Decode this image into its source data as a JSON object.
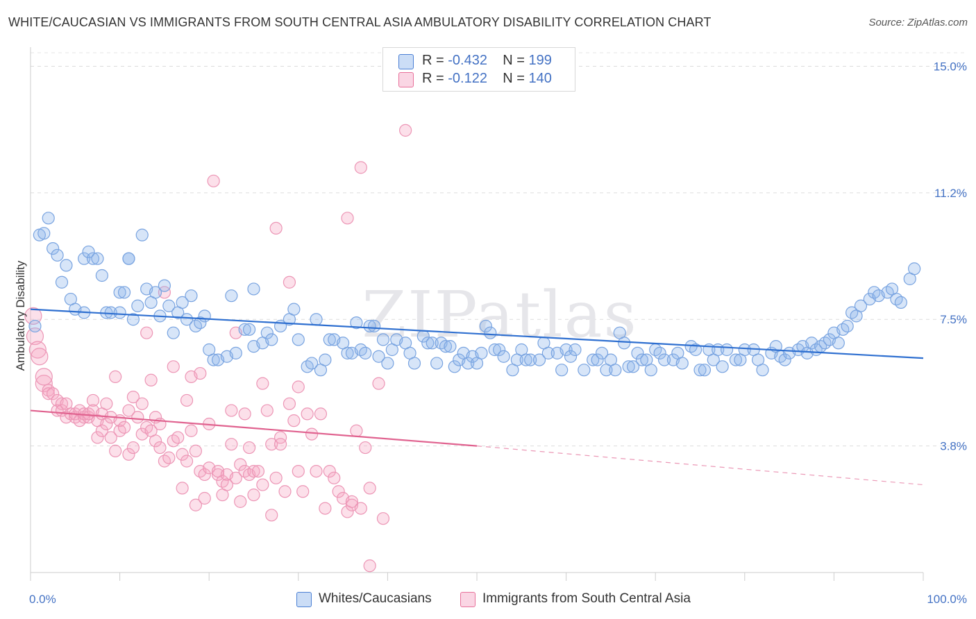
{
  "title": "WHITE/CAUCASIAN VS IMMIGRANTS FROM SOUTH CENTRAL ASIA AMBULATORY DISABILITY CORRELATION CHART",
  "source": "Source: ZipAtlas.com",
  "watermark": "ZIPatlas",
  "colors": {
    "blue": "#4a7fd4",
    "blue_fill": "rgba(140,180,235,0.35)",
    "pink": "#e8709a",
    "pink_fill": "rgba(245,165,195,0.35)",
    "tick_label": "#4472c4"
  },
  "legend_top": [
    {
      "r_label": "R = ",
      "r_value": "-0.432",
      "n_label": "N = ",
      "n_value": "199"
    },
    {
      "r_label": "R = ",
      "r_value": " -0.122",
      "n_label": "N = ",
      "n_value": "140"
    }
  ],
  "chart_data": {
    "type": "scatter",
    "title": "WHITE/CAUCASIAN VS IMMIGRANTS FROM SOUTH CENTRAL ASIA AMBULATORY DISABILITY CORRELATION CHART",
    "ylabel": "Ambulatory Disability",
    "xlabel": "",
    "x_tick_labels": [
      "0.0%",
      "100.0%"
    ],
    "y_tick_labels": [
      "15.0%",
      "11.2%",
      "7.5%",
      "3.8%"
    ],
    "y_ticks": [
      15.0,
      11.25,
      7.5,
      3.75
    ],
    "xlim": [
      0,
      100
    ],
    "ylim": [
      0,
      15.4
    ],
    "grid": "horizontal dashed",
    "legend": "bottom-center",
    "series": [
      {
        "name": "Whites/Caucasians",
        "color": "#4a7fd4",
        "R": -0.432,
        "N": 199,
        "trend": {
          "x": [
            0,
            100
          ],
          "y": [
            7.8,
            6.35
          ]
        },
        "points": [
          [
            0.5,
            7.3
          ],
          [
            1,
            10
          ],
          [
            1.5,
            10.05
          ],
          [
            2,
            10.5
          ],
          [
            2.5,
            9.6
          ],
          [
            3,
            9.4
          ],
          [
            3.5,
            8.6
          ],
          [
            4,
            9.1
          ],
          [
            4.5,
            8.1
          ],
          [
            5,
            7.8
          ],
          [
            6,
            7.7
          ],
          [
            6,
            9.3
          ],
          [
            6.5,
            9.5
          ],
          [
            7,
            9.3
          ],
          [
            7.5,
            9.3
          ],
          [
            8,
            8.8
          ],
          [
            8.5,
            7.7
          ],
          [
            9,
            7.7
          ],
          [
            10,
            8.3
          ],
          [
            10,
            7.7
          ],
          [
            10.5,
            8.3
          ],
          [
            11,
            9.3
          ],
          [
            11,
            9.3
          ],
          [
            11.5,
            7.5
          ],
          [
            12,
            7.9
          ],
          [
            12.5,
            10
          ],
          [
            13,
            8.4
          ],
          [
            13.5,
            8.0
          ],
          [
            14,
            8.3
          ],
          [
            14.5,
            7.6
          ],
          [
            15,
            8.5
          ],
          [
            15.5,
            7.9
          ],
          [
            16,
            7.1
          ],
          [
            16.5,
            7.7
          ],
          [
            17,
            8.0
          ],
          [
            17.5,
            7.5
          ],
          [
            18,
            8.2
          ],
          [
            18.5,
            7.3
          ],
          [
            19,
            7.4
          ],
          [
            19.5,
            7.6
          ],
          [
            20,
            6.6
          ],
          [
            20.5,
            6.3
          ],
          [
            21,
            6.3
          ],
          [
            22,
            6.4
          ],
          [
            22.5,
            8.2
          ],
          [
            23,
            6.5
          ],
          [
            24,
            7.2
          ],
          [
            24.5,
            7.2
          ],
          [
            25,
            8.4
          ],
          [
            25,
            6.7
          ],
          [
            26,
            6.8
          ],
          [
            26.5,
            7.1
          ],
          [
            27,
            6.9
          ],
          [
            28,
            7.3
          ],
          [
            29,
            7.5
          ],
          [
            29.5,
            7.8
          ],
          [
            30,
            6.9
          ],
          [
            31,
            6.1
          ],
          [
            31.5,
            6.2
          ],
          [
            32,
            7.5
          ],
          [
            32.5,
            6.0
          ],
          [
            33,
            6.3
          ],
          [
            33.5,
            6.9
          ],
          [
            34,
            6.9
          ],
          [
            35,
            6.8
          ],
          [
            35.5,
            6.5
          ],
          [
            36,
            6.5
          ],
          [
            36.5,
            7.4
          ],
          [
            37,
            6.6
          ],
          [
            37.5,
            6.5
          ],
          [
            38,
            7.3
          ],
          [
            38.5,
            7.3
          ],
          [
            39,
            6.4
          ],
          [
            39.5,
            6.9
          ],
          [
            40,
            6.2
          ],
          [
            40.5,
            6.6
          ],
          [
            41,
            6.9
          ],
          [
            42,
            6.8
          ],
          [
            42.5,
            6.5
          ],
          [
            43,
            6.2
          ],
          [
            44,
            7.0
          ],
          [
            44.5,
            6.8
          ],
          [
            45,
            6.8
          ],
          [
            45.5,
            6.2
          ],
          [
            46,
            6.8
          ],
          [
            46.5,
            6.7
          ],
          [
            47,
            6.7
          ],
          [
            47.5,
            6.1
          ],
          [
            48,
            6.3
          ],
          [
            48.5,
            6.5
          ],
          [
            49,
            6.2
          ],
          [
            49.5,
            6.4
          ],
          [
            50,
            6.2
          ],
          [
            50.5,
            6.5
          ],
          [
            51,
            7.3
          ],
          [
            51.5,
            7.1
          ],
          [
            52,
            6.6
          ],
          [
            52.5,
            6.6
          ],
          [
            53,
            6.4
          ],
          [
            54,
            6.0
          ],
          [
            54.5,
            6.3
          ],
          [
            55,
            6.6
          ],
          [
            55.5,
            6.3
          ],
          [
            56,
            6.3
          ],
          [
            57,
            6.3
          ],
          [
            57.5,
            6.8
          ],
          [
            58,
            6.5
          ],
          [
            59,
            6.5
          ],
          [
            59.5,
            6.0
          ],
          [
            60,
            6.6
          ],
          [
            60.5,
            6.4
          ],
          [
            61,
            6.6
          ],
          [
            62,
            6.0
          ],
          [
            63,
            6.3
          ],
          [
            63.5,
            6.3
          ],
          [
            64,
            6.5
          ],
          [
            64.5,
            6.0
          ],
          [
            65,
            6.3
          ],
          [
            65.5,
            6.0
          ],
          [
            66,
            7.1
          ],
          [
            66.5,
            6.8
          ],
          [
            67,
            6.1
          ],
          [
            67.5,
            6.1
          ],
          [
            68,
            6.5
          ],
          [
            68.5,
            6.3
          ],
          [
            69,
            6.3
          ],
          [
            69.5,
            6.0
          ],
          [
            70,
            6.6
          ],
          [
            70.5,
            6.5
          ],
          [
            71,
            6.3
          ],
          [
            72,
            6.3
          ],
          [
            72.5,
            6.5
          ],
          [
            73,
            6.2
          ],
          [
            74,
            6.7
          ],
          [
            74.5,
            6.6
          ],
          [
            75,
            6.0
          ],
          [
            75.5,
            6.0
          ],
          [
            76,
            6.6
          ],
          [
            76.5,
            6.3
          ],
          [
            77,
            6.6
          ],
          [
            77.5,
            6.1
          ],
          [
            78,
            6.6
          ],
          [
            79,
            6.3
          ],
          [
            79.5,
            6.3
          ],
          [
            80,
            6.6
          ],
          [
            81,
            6.6
          ],
          [
            81.5,
            6.3
          ],
          [
            82,
            6.0
          ],
          [
            83,
            6.5
          ],
          [
            83.5,
            6.7
          ],
          [
            84,
            6.4
          ],
          [
            84.5,
            6.3
          ],
          [
            85,
            6.5
          ],
          [
            86,
            6.6
          ],
          [
            86.5,
            6.7
          ],
          [
            87,
            6.5
          ],
          [
            87.5,
            6.8
          ],
          [
            88,
            6.6
          ],
          [
            88.5,
            6.7
          ],
          [
            89,
            6.8
          ],
          [
            89.5,
            6.9
          ],
          [
            90,
            7.1
          ],
          [
            90.5,
            6.8
          ],
          [
            91,
            7.2
          ],
          [
            91.5,
            7.3
          ],
          [
            92,
            7.7
          ],
          [
            92.5,
            7.6
          ],
          [
            93,
            7.9
          ],
          [
            94,
            8.1
          ],
          [
            94.5,
            8.3
          ],
          [
            95,
            8.2
          ],
          [
            96,
            8.3
          ],
          [
            96.5,
            8.4
          ],
          [
            97,
            8.1
          ],
          [
            97.5,
            8.0
          ],
          [
            98.5,
            8.7
          ],
          [
            99,
            9.0
          ]
        ]
      },
      {
        "name": "Immigrants from South Central Asia",
        "color": "#e8709a",
        "R": -0.122,
        "N": 140,
        "trend": {
          "x": [
            0,
            50
          ],
          "y": [
            4.8,
            3.75
          ]
        },
        "trend_dashed": {
          "x": [
            50,
            100
          ],
          "y": [
            3.75,
            2.6
          ]
        },
        "points": [
          [
            0.3,
            7.6
          ],
          [
            0.5,
            7.0
          ],
          [
            0.8,
            6.6
          ],
          [
            1,
            6.4
          ],
          [
            1.5,
            5.6
          ],
          [
            1.5,
            5.8
          ],
          [
            2,
            5.4
          ],
          [
            2,
            5.3
          ],
          [
            2.5,
            5.3
          ],
          [
            3,
            5.1
          ],
          [
            3,
            4.8
          ],
          [
            3.5,
            5.0
          ],
          [
            3.5,
            4.8
          ],
          [
            4,
            4.6
          ],
          [
            4,
            5.0
          ],
          [
            4.5,
            4.7
          ],
          [
            5,
            4.6
          ],
          [
            5,
            4.7
          ],
          [
            5.5,
            4.5
          ],
          [
            5.5,
            4.8
          ],
          [
            6,
            4.6
          ],
          [
            6,
            4.7
          ],
          [
            6.5,
            4.6
          ],
          [
            6.5,
            4.7
          ],
          [
            7,
            5.1
          ],
          [
            7,
            4.8
          ],
          [
            7.5,
            4.0
          ],
          [
            7.5,
            4.5
          ],
          [
            8,
            4.2
          ],
          [
            8,
            4.7
          ],
          [
            8.5,
            4.4
          ],
          [
            8.5,
            5.0
          ],
          [
            9,
            4.0
          ],
          [
            9,
            4.6
          ],
          [
            9.5,
            5.8
          ],
          [
            9.5,
            3.6
          ],
          [
            10,
            4.2
          ],
          [
            10,
            4.5
          ],
          [
            10.5,
            4.3
          ],
          [
            11,
            3.5
          ],
          [
            11,
            4.8
          ],
          [
            11.5,
            3.7
          ],
          [
            11.5,
            5.2
          ],
          [
            12,
            4.6
          ],
          [
            12.5,
            5.0
          ],
          [
            12.5,
            4.1
          ],
          [
            13,
            4.3
          ],
          [
            13,
            7.1
          ],
          [
            13.5,
            4.2
          ],
          [
            13.5,
            5.7
          ],
          [
            14,
            3.9
          ],
          [
            14,
            4.6
          ],
          [
            14.5,
            4.4
          ],
          [
            14.5,
            3.7
          ],
          [
            15,
            3.3
          ],
          [
            15,
            8.3
          ],
          [
            15.5,
            3.4
          ],
          [
            16,
            3.9
          ],
          [
            16,
            6.1
          ],
          [
            16.5,
            4.0
          ],
          [
            17,
            3.5
          ],
          [
            17,
            2.5
          ],
          [
            17.5,
            3.3
          ],
          [
            17.5,
            5.1
          ],
          [
            18,
            4.2
          ],
          [
            18,
            5.8
          ],
          [
            18.5,
            3.6
          ],
          [
            18.5,
            2.0
          ],
          [
            19,
            3.0
          ],
          [
            19,
            5.9
          ],
          [
            19.5,
            2.9
          ],
          [
            19.5,
            2.2
          ],
          [
            20,
            3.1
          ],
          [
            20,
            4.4
          ],
          [
            20.5,
            11.6
          ],
          [
            21,
            2.9
          ],
          [
            21,
            3.0
          ],
          [
            21.5,
            2.7
          ],
          [
            21.5,
            2.3
          ],
          [
            22,
            2.9
          ],
          [
            22,
            2.6
          ],
          [
            22.5,
            4.8
          ],
          [
            22.5,
            3.8
          ],
          [
            23,
            2.8
          ],
          [
            23,
            7.1
          ],
          [
            23.5,
            3.2
          ],
          [
            23.5,
            2.1
          ],
          [
            24,
            3.0
          ],
          [
            24,
            4.7
          ],
          [
            24.5,
            2.9
          ],
          [
            24.5,
            3.7
          ],
          [
            25,
            2.3
          ],
          [
            25,
            3.0
          ],
          [
            25.5,
            3.0
          ],
          [
            26,
            2.6
          ],
          [
            26,
            5.6
          ],
          [
            26.5,
            4.8
          ],
          [
            27,
            3.8
          ],
          [
            27,
            1.7
          ],
          [
            27.5,
            2.8
          ],
          [
            27.5,
            10.2
          ],
          [
            28,
            4.0
          ],
          [
            28,
            3.8
          ],
          [
            28.5,
            2.4
          ],
          [
            29,
            8.6
          ],
          [
            29,
            5.0
          ],
          [
            29.5,
            4.5
          ],
          [
            30,
            5.5
          ],
          [
            30,
            3.0
          ],
          [
            30.5,
            2.4
          ],
          [
            31,
            4.7
          ],
          [
            31.5,
            4.1
          ],
          [
            32,
            3.0
          ],
          [
            32.5,
            4.7
          ],
          [
            33,
            1.9
          ],
          [
            33.5,
            3.0
          ],
          [
            34,
            2.8
          ],
          [
            34.5,
            2.4
          ],
          [
            35,
            2.2
          ],
          [
            35.5,
            10.5
          ],
          [
            35.5,
            1.8
          ],
          [
            36,
            2.0
          ],
          [
            36,
            2.1
          ],
          [
            36.5,
            4.2
          ],
          [
            37,
            1.9
          ],
          [
            37.5,
            3.7
          ],
          [
            38,
            2.5
          ],
          [
            38,
            0.2
          ],
          [
            39,
            5.6
          ],
          [
            39.5,
            1.6
          ],
          [
            42,
            13.1
          ],
          [
            37,
            12.0
          ]
        ]
      }
    ]
  }
}
